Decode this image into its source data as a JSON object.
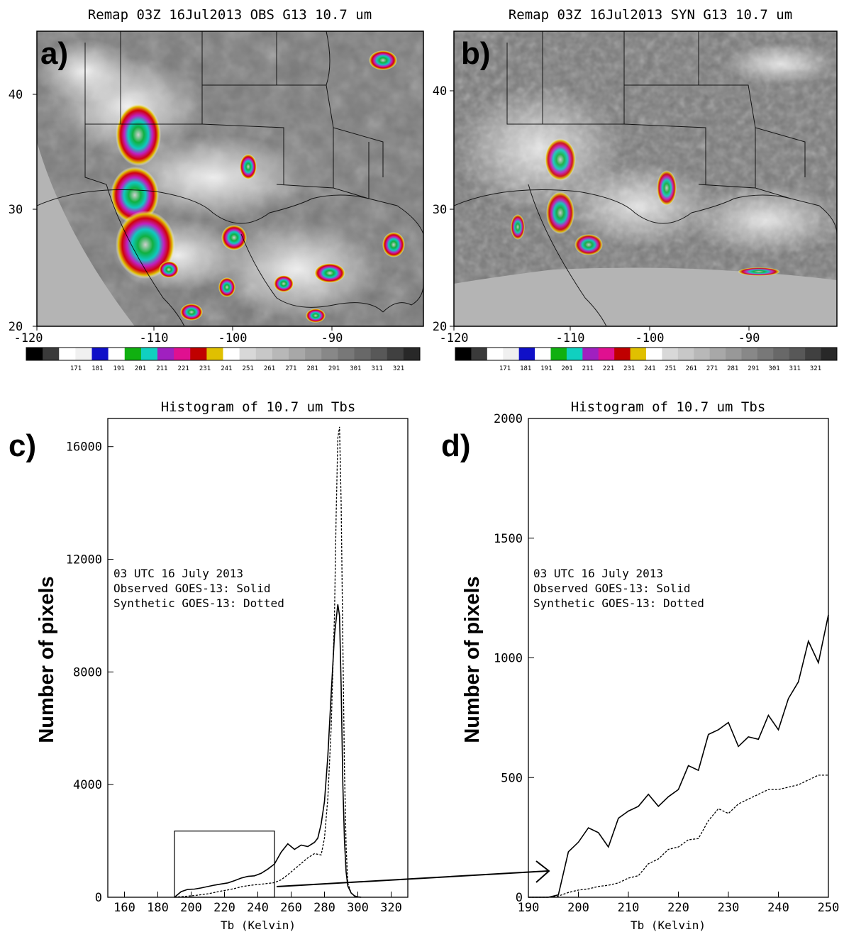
{
  "maps": [
    {
      "panel_label": "a)",
      "title": "Remap 03Z 16Jul2013 OBS G13 10.7 um",
      "x_ticks": [
        "-120",
        "-110",
        "-100",
        "-90"
      ],
      "y_ticks": [
        "20",
        "30",
        "40"
      ],
      "colorbar_ticks": [
        "171",
        "181",
        "191",
        "201",
        "211",
        "221",
        "231",
        "241",
        "251",
        "261",
        "271",
        "281",
        "291",
        "301",
        "311",
        "321"
      ]
    },
    {
      "panel_label": "b)",
      "title": "Remap 03Z 16Jul2013 SYN G13 10.7 um",
      "x_ticks": [
        "-120",
        "-110",
        "-100",
        "-90"
      ],
      "y_ticks": [
        "20",
        "30",
        "40"
      ],
      "colorbar_ticks": [
        "171",
        "181",
        "191",
        "201",
        "211",
        "221",
        "231",
        "241",
        "251",
        "261",
        "271",
        "281",
        "291",
        "301",
        "311",
        "321"
      ]
    }
  ],
  "colors": {
    "colorbar": [
      "#000000",
      "#3a3a3a",
      "#ffffff",
      "#f0f0f0",
      "#1010c8",
      "#ffffff",
      "#10b010",
      "#10d0c0",
      "#a020c0",
      "#e01090",
      "#c00000",
      "#e0c000",
      "#ffffff",
      "#d8d8d8",
      "#c8c8c8",
      "#b8b8b8",
      "#a8a8a8",
      "#989898",
      "#888888",
      "#787878",
      "#686868",
      "#585858",
      "#404040",
      "#282828"
    ],
    "map_background": "#7a7a7a",
    "ocean": "#b4b4b4"
  },
  "chart_data": [
    {
      "type": "line",
      "panel_label": "c)",
      "title": "Histogram of 10.7 um Tbs",
      "xlabel": "Tb (Kelvin)",
      "ylabel": "Number of pixels",
      "xlim": [
        150,
        330
      ],
      "ylim": [
        0,
        17000
      ],
      "x_ticks": [
        160,
        180,
        200,
        220,
        240,
        260,
        280,
        300,
        320
      ],
      "y_ticks": [
        0,
        4000,
        8000,
        12000,
        16000
      ],
      "annotation": [
        "03 UTC 16 July 2013",
        "Observed GOES-13: Solid",
        "Synthetic GOES-13: Dotted"
      ],
      "zoom_box": {
        "x": [
          190,
          250
        ],
        "y": [
          0,
          2350
        ]
      },
      "series": [
        {
          "style": "solid",
          "x": [
            190,
            194,
            198,
            202,
            206,
            210,
            214,
            218,
            222,
            226,
            230,
            234,
            238,
            242,
            246,
            250,
            254,
            258,
            262,
            266,
            270,
            274,
            276,
            278,
            280,
            282,
            284,
            286,
            288,
            289,
            290,
            291,
            292,
            293,
            294,
            296,
            298,
            300,
            302
          ],
          "values": [
            0,
            200,
            280,
            290,
            330,
            380,
            430,
            470,
            510,
            590,
            680,
            740,
            760,
            850,
            1000,
            1180,
            1600,
            1900,
            1700,
            1850,
            1800,
            1950,
            2100,
            2600,
            3400,
            5000,
            7200,
            9300,
            10400,
            10000,
            7500,
            4000,
            2000,
            900,
            400,
            150,
            50,
            10,
            0
          ]
        },
        {
          "style": "dotted",
          "x": [
            190,
            194,
            198,
            202,
            206,
            210,
            214,
            218,
            222,
            226,
            230,
            234,
            238,
            242,
            246,
            250,
            254,
            258,
            262,
            266,
            270,
            274,
            278,
            280,
            282,
            284,
            286,
            287,
            288,
            289,
            290,
            291,
            292,
            293,
            294,
            296,
            298,
            300
          ],
          "values": [
            0,
            20,
            40,
            60,
            90,
            120,
            170,
            220,
            260,
            310,
            370,
            410,
            440,
            460,
            490,
            520,
            620,
            800,
            1000,
            1200,
            1400,
            1550,
            1500,
            2100,
            3500,
            6000,
            10000,
            13500,
            16300,
            16700,
            14000,
            9000,
            4500,
            1800,
            500,
            150,
            40,
            0
          ]
        }
      ]
    },
    {
      "type": "line",
      "panel_label": "d)",
      "title": "Histogram of 10.7 um Tbs",
      "xlabel": "Tb (Kelvin)",
      "ylabel": "Number of pixels",
      "xlim": [
        190,
        250
      ],
      "ylim": [
        0,
        2000
      ],
      "x_ticks": [
        190,
        200,
        210,
        220,
        230,
        240,
        250
      ],
      "y_ticks": [
        0,
        500,
        1000,
        1500,
        2000
      ],
      "annotation": [
        "03 UTC 16 July 2013",
        "Observed GOES-13: Solid",
        "Synthetic GOES-13: Dotted"
      ],
      "series": [
        {
          "style": "solid",
          "x": [
            190,
            194,
            196,
            198,
            200,
            202,
            204,
            206,
            208,
            210,
            212,
            214,
            216,
            218,
            220,
            222,
            224,
            226,
            228,
            230,
            232,
            234,
            236,
            238,
            240,
            242,
            244,
            246,
            248,
            250
          ],
          "values": [
            0,
            0,
            10,
            190,
            230,
            290,
            270,
            210,
            330,
            360,
            380,
            430,
            380,
            420,
            450,
            550,
            530,
            680,
            700,
            730,
            630,
            670,
            660,
            760,
            700,
            830,
            900,
            1070,
            980,
            1180
          ]
        },
        {
          "style": "dotted",
          "x": [
            190,
            194,
            196,
            198,
            200,
            202,
            204,
            206,
            208,
            210,
            212,
            214,
            216,
            218,
            220,
            222,
            224,
            226,
            228,
            230,
            232,
            234,
            236,
            238,
            240,
            242,
            244,
            246,
            248,
            250
          ],
          "values": [
            0,
            0,
            5,
            20,
            30,
            35,
            45,
            50,
            60,
            80,
            90,
            140,
            160,
            200,
            210,
            240,
            245,
            320,
            370,
            350,
            390,
            410,
            430,
            450,
            450,
            460,
            470,
            490,
            510,
            510
          ]
        }
      ]
    }
  ]
}
